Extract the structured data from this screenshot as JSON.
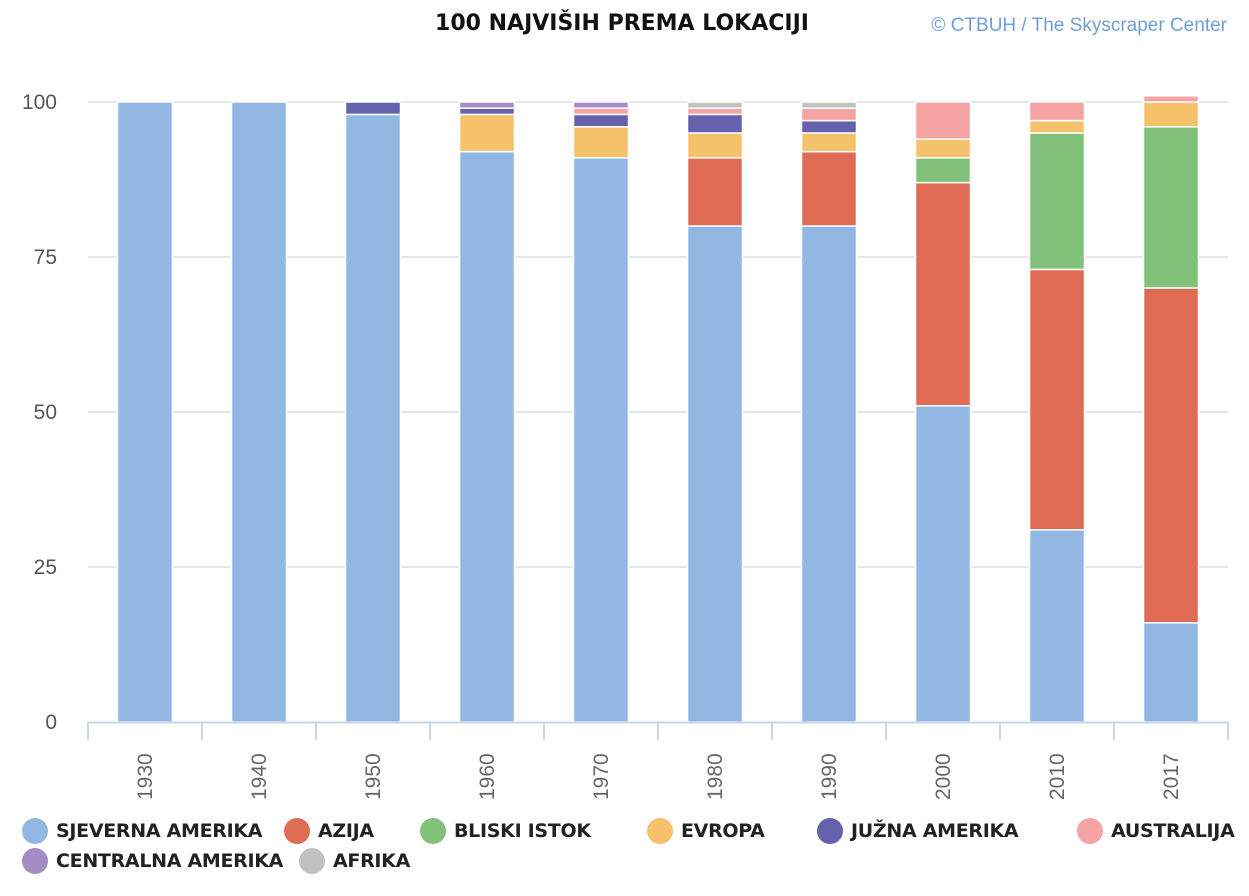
{
  "chart_data": {
    "type": "bar",
    "stacked": true,
    "title": "100 NAJVIŠIH PREMA LOKACIJI",
    "credit": "© CTBUH / The Skyscraper Center",
    "xlabel": "",
    "ylabel": "",
    "ylim": [
      0,
      100
    ],
    "yticks": [
      "0",
      "25",
      "50",
      "75",
      "100"
    ],
    "grid": true,
    "legend_position": "bottom",
    "categories": [
      "1930",
      "1940",
      "1950",
      "1960",
      "1970",
      "1980",
      "1990",
      "2000",
      "2010",
      "2017"
    ],
    "series": [
      {
        "name": "SJEVERNA AMERIKA",
        "color": "#93b7e3",
        "values": [
          100,
          100,
          98,
          92,
          91,
          80,
          80,
          51,
          31,
          16
        ]
      },
      {
        "name": "AZIJA",
        "color": "#e06c55",
        "values": [
          0,
          0,
          0,
          0,
          0,
          11,
          12,
          36,
          42,
          54
        ]
      },
      {
        "name": "BLISKI ISTOK",
        "color": "#82c17a",
        "values": [
          0,
          0,
          0,
          0,
          0,
          0,
          0,
          4,
          22,
          26
        ]
      },
      {
        "name": "EVROPA",
        "color": "#f5c26b",
        "values": [
          0,
          0,
          0,
          6,
          5,
          4,
          3,
          3,
          2,
          4
        ]
      },
      {
        "name": "JUŽNA AMERIKA",
        "color": "#6661ad",
        "values": [
          0,
          0,
          2,
          1,
          2,
          3,
          2,
          0,
          0,
          0
        ]
      },
      {
        "name": "AUSTRALIJA",
        "color": "#f6a3a3",
        "values": [
          0,
          0,
          0,
          0,
          1,
          1,
          2,
          6,
          3,
          1
        ]
      },
      {
        "name": "CENTRALNA AMERIKA",
        "color": "#a58cc5",
        "values": [
          0,
          0,
          0,
          1,
          1,
          0,
          0,
          0,
          0,
          0
        ]
      },
      {
        "name": "AFRIKA",
        "color": "#c2c2c2",
        "values": [
          0,
          0,
          0,
          0,
          0,
          1,
          1,
          0,
          0,
          0
        ]
      }
    ]
  }
}
